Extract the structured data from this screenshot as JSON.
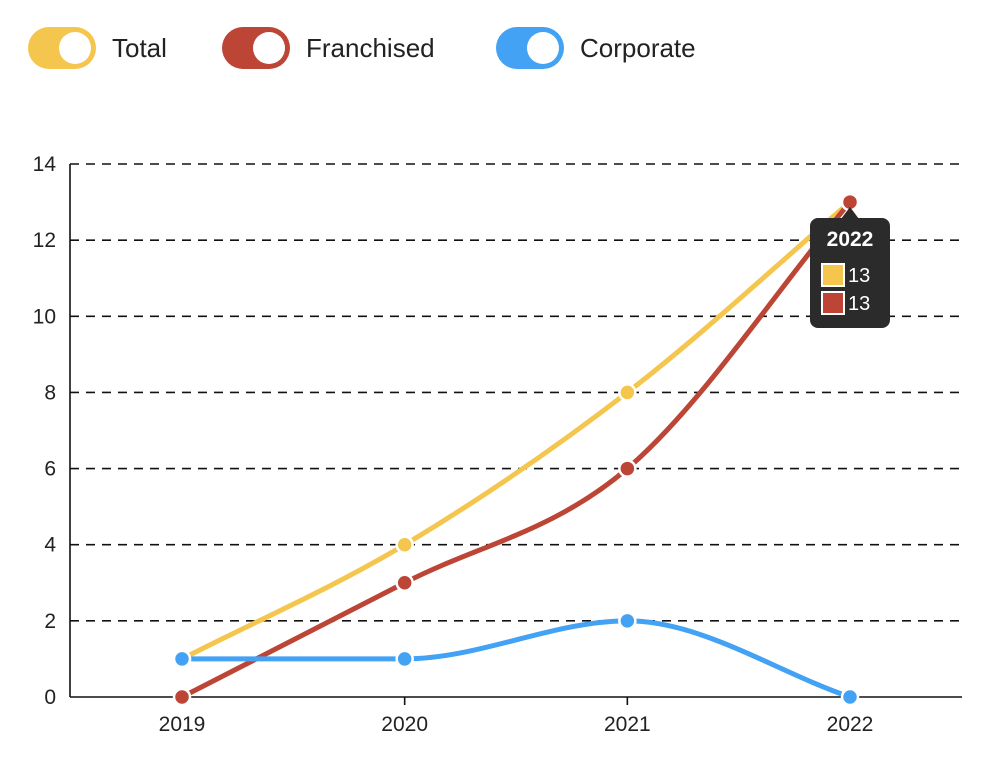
{
  "chart_data": {
    "type": "line",
    "categories": [
      "2019",
      "2020",
      "2021",
      "2022"
    ],
    "ylim": [
      0,
      14
    ],
    "yticks": [
      0,
      2,
      4,
      6,
      8,
      10,
      12,
      14
    ],
    "grid": true,
    "grid_style": "dashed",
    "legend_position": "top-left",
    "legend_style": "toggle-switch",
    "series": [
      {
        "name": "Total",
        "values": [
          1,
          4,
          8,
          13
        ],
        "color": "#f5c64e"
      },
      {
        "name": "Franchised",
        "values": [
          0,
          3,
          6,
          13
        ],
        "color": "#bc4536"
      },
      {
        "name": "Corporate",
        "values": [
          1,
          1,
          2,
          0
        ],
        "color": "#43a2f4"
      }
    ],
    "tooltip": {
      "title": "2022",
      "items": [
        {
          "value": "13",
          "color": "#f5c64e"
        },
        {
          "value": "13",
          "color": "#bc4536"
        }
      ]
    }
  }
}
